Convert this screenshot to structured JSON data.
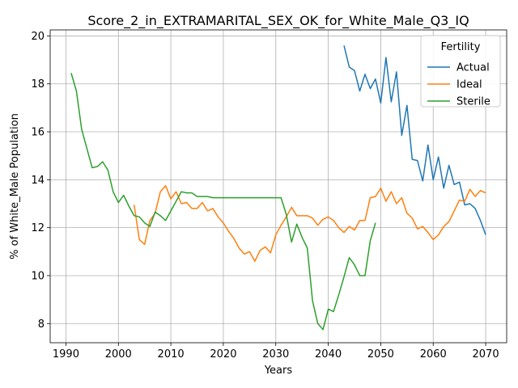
{
  "chart_data": {
    "type": "line",
    "title": "Score_2_in_EXTRAMARITAL_SEX_OK_for_White_Male_Q3_IQ",
    "xlabel": "Years",
    "ylabel": "% of White_Male Population",
    "xlim": [
      1987,
      2074
    ],
    "ylim": [
      7.2,
      20.25
    ],
    "xticks": [
      1990,
      2000,
      2010,
      2020,
      2030,
      2040,
      2050,
      2060,
      2070
    ],
    "yticks": [
      8,
      10,
      12,
      14,
      16,
      18,
      20
    ],
    "grid": true,
    "legend": {
      "title": "Fertility",
      "placement": "top-right"
    },
    "series": [
      {
        "name": "Actual",
        "color": "#1f77b4",
        "points": [
          [
            2043,
            19.6
          ],
          [
            2044,
            18.7
          ],
          [
            2045,
            18.55
          ],
          [
            2046,
            17.7
          ],
          [
            2047,
            18.4
          ],
          [
            2048,
            17.8
          ],
          [
            2049,
            18.2
          ],
          [
            2050,
            17.2
          ],
          [
            2051,
            19.1
          ],
          [
            2052,
            17.25
          ],
          [
            2053,
            18.5
          ],
          [
            2054,
            15.85
          ],
          [
            2055,
            17.1
          ],
          [
            2056,
            14.85
          ],
          [
            2057,
            14.8
          ],
          [
            2058,
            13.95
          ],
          [
            2059,
            15.45
          ],
          [
            2060,
            14.0
          ],
          [
            2061,
            14.95
          ],
          [
            2062,
            13.65
          ],
          [
            2063,
            14.6
          ],
          [
            2064,
            13.8
          ],
          [
            2065,
            13.9
          ],
          [
            2066,
            12.95
          ],
          [
            2067,
            13.0
          ],
          [
            2068,
            12.8
          ],
          [
            2069,
            12.3
          ],
          [
            2070,
            11.7
          ]
        ]
      },
      {
        "name": "Ideal",
        "color": "#ff7f0e",
        "points": [
          [
            2003,
            12.95
          ],
          [
            2004,
            11.5
          ],
          [
            2005,
            11.3
          ],
          [
            2006,
            12.3
          ],
          [
            2007,
            12.6
          ],
          [
            2008,
            13.5
          ],
          [
            2009,
            13.75
          ],
          [
            2010,
            13.2
          ],
          [
            2011,
            13.5
          ],
          [
            2012,
            13.0
          ],
          [
            2013,
            13.05
          ],
          [
            2014,
            12.8
          ],
          [
            2015,
            12.8
          ],
          [
            2016,
            13.05
          ],
          [
            2017,
            12.7
          ],
          [
            2018,
            12.8
          ],
          [
            2019,
            12.45
          ],
          [
            2020,
            12.2
          ],
          [
            2021,
            11.85
          ],
          [
            2022,
            11.55
          ],
          [
            2023,
            11.15
          ],
          [
            2024,
            10.9
          ],
          [
            2025,
            11.0
          ],
          [
            2026,
            10.6
          ],
          [
            2027,
            11.05
          ],
          [
            2028,
            11.2
          ],
          [
            2029,
            10.95
          ],
          [
            2030,
            11.7
          ],
          [
            2031,
            12.1
          ],
          [
            2032,
            12.45
          ],
          [
            2033,
            12.85
          ],
          [
            2034,
            12.5
          ],
          [
            2035,
            12.5
          ],
          [
            2036,
            12.5
          ],
          [
            2037,
            12.4
          ],
          [
            2038,
            12.1
          ],
          [
            2039,
            12.35
          ],
          [
            2040,
            12.45
          ],
          [
            2041,
            12.3
          ],
          [
            2042,
            12.0
          ],
          [
            2043,
            11.8
          ],
          [
            2044,
            12.05
          ],
          [
            2045,
            11.9
          ],
          [
            2046,
            12.3
          ],
          [
            2047,
            12.3
          ],
          [
            2048,
            13.25
          ],
          [
            2049,
            13.3
          ],
          [
            2050,
            13.65
          ],
          [
            2051,
            13.1
          ],
          [
            2052,
            13.5
          ],
          [
            2053,
            13.0
          ],
          [
            2054,
            13.25
          ],
          [
            2055,
            12.6
          ],
          [
            2056,
            12.4
          ],
          [
            2057,
            11.95
          ],
          [
            2058,
            12.05
          ],
          [
            2059,
            11.8
          ],
          [
            2060,
            11.5
          ],
          [
            2061,
            11.7
          ],
          [
            2062,
            12.05
          ],
          [
            2063,
            12.25
          ],
          [
            2064,
            12.7
          ],
          [
            2065,
            13.15
          ],
          [
            2066,
            13.1
          ],
          [
            2067,
            13.6
          ],
          [
            2068,
            13.3
          ],
          [
            2069,
            13.55
          ],
          [
            2070,
            13.45
          ]
        ]
      },
      {
        "name": "Sterile",
        "color": "#2ca02c",
        "points": [
          [
            1991,
            18.45
          ],
          [
            1992,
            17.7
          ],
          [
            1993,
            16.1
          ],
          [
            1994,
            15.3
          ],
          [
            1995,
            14.5
          ],
          [
            1996,
            14.55
          ],
          [
            1997,
            14.75
          ],
          [
            1998,
            14.4
          ],
          [
            1999,
            13.5
          ],
          [
            2000,
            13.05
          ],
          [
            2001,
            13.35
          ],
          [
            2002,
            12.9
          ],
          [
            2003,
            12.5
          ],
          [
            2004,
            12.45
          ],
          [
            2005,
            12.2
          ],
          [
            2006,
            12.05
          ],
          [
            2007,
            12.65
          ],
          [
            2008,
            12.5
          ],
          [
            2009,
            12.3
          ],
          [
            2010,
            12.7
          ],
          [
            2011,
            13.1
          ],
          [
            2012,
            13.5
          ],
          [
            2013,
            13.45
          ],
          [
            2014,
            13.45
          ],
          [
            2015,
            13.3
          ],
          [
            2016,
            13.3
          ],
          [
            2017,
            13.3
          ],
          [
            2018,
            13.25
          ],
          [
            2019,
            13.25
          ],
          [
            2020,
            13.25
          ],
          [
            2021,
            13.25
          ],
          [
            2022,
            13.25
          ],
          [
            2023,
            13.25
          ],
          [
            2024,
            13.25
          ],
          [
            2025,
            13.25
          ],
          [
            2026,
            13.25
          ],
          [
            2027,
            13.25
          ],
          [
            2028,
            13.25
          ],
          [
            2029,
            13.25
          ],
          [
            2030,
            13.25
          ],
          [
            2031,
            13.25
          ],
          [
            2032,
            12.55
          ],
          [
            2033,
            11.4
          ],
          [
            2034,
            12.15
          ],
          [
            2035,
            11.6
          ],
          [
            2036,
            11.15
          ],
          [
            2037,
            8.95
          ],
          [
            2038,
            8.0
          ],
          [
            2039,
            7.75
          ],
          [
            2040,
            8.6
          ],
          [
            2041,
            8.5
          ],
          [
            2042,
            9.2
          ],
          [
            2043,
            9.95
          ],
          [
            2044,
            10.75
          ],
          [
            2045,
            10.45
          ],
          [
            2046,
            10.0
          ],
          [
            2047,
            10.0
          ],
          [
            2048,
            11.45
          ],
          [
            2049,
            12.2
          ]
        ]
      }
    ]
  }
}
